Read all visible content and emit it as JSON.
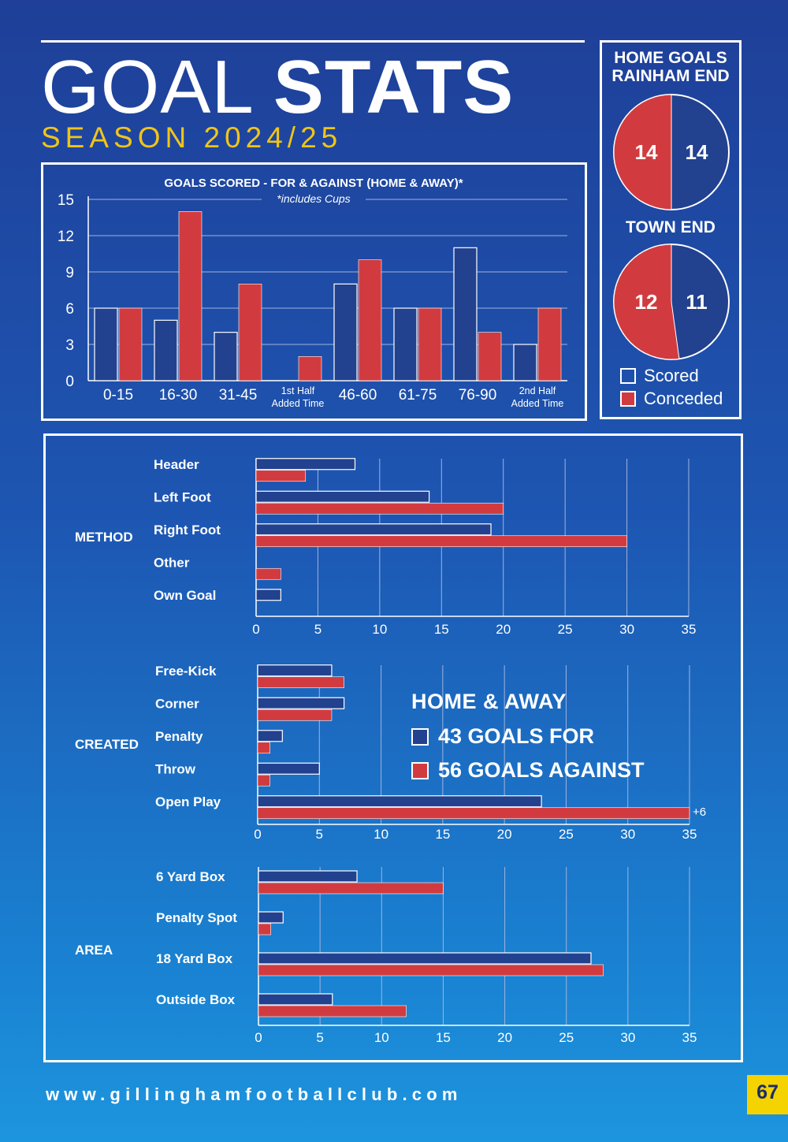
{
  "title": {
    "light": "GOAL",
    "bold": "STATS"
  },
  "season": "SEASON 2024/25",
  "colors": {
    "scored": "#22418f",
    "conceded": "#d13b3f",
    "season_text": "#f0c419",
    "page_box": "#f5d300"
  },
  "legend": {
    "scored": "Scored",
    "conceded": "Conceded"
  },
  "home_away": {
    "heading": "HOME & AWAY",
    "for": "43 GOALS FOR",
    "against": "56 GOALS AGAINST"
  },
  "footer": {
    "url": "www.gillinghamfootballclub.com",
    "page": "67"
  },
  "chart_data": [
    {
      "id": "timing",
      "type": "bar",
      "title": "GOALS SCORED - FOR & AGAINST (HOME & AWAY)*",
      "subtitle": "*includes Cups",
      "categories": [
        "0-15",
        "16-30",
        "31-45",
        "1st Half\nAdded Time",
        "46-60",
        "61-75",
        "76-90",
        "2nd Half\nAdded Time"
      ],
      "series": [
        {
          "name": "Scored",
          "values": [
            6,
            5,
            4,
            0,
            8,
            6,
            11,
            3
          ]
        },
        {
          "name": "Conceded",
          "values": [
            6,
            14,
            8,
            2,
            10,
            6,
            4,
            6
          ]
        }
      ],
      "yticks": [
        0,
        3,
        6,
        9,
        12,
        15
      ],
      "ylim": [
        0,
        15
      ],
      "grid": true
    },
    {
      "id": "rainham",
      "type": "pie",
      "title": "HOME GOALS\nRAINHAM END",
      "labels": [
        "Conceded",
        "Scored"
      ],
      "values": [
        14,
        14
      ]
    },
    {
      "id": "town",
      "type": "pie",
      "title": "TOWN END",
      "labels": [
        "Conceded",
        "Scored"
      ],
      "values": [
        12,
        11
      ]
    },
    {
      "id": "method",
      "type": "bar",
      "orientation": "horizontal",
      "group_label": "METHOD",
      "categories": [
        "Header",
        "Left Foot",
        "Right Foot",
        "Other",
        "Own Goal"
      ],
      "series": [
        {
          "name": "Scored",
          "values": [
            8,
            14,
            19,
            0,
            2
          ]
        },
        {
          "name": "Conceded",
          "values": [
            4,
            20,
            30,
            2,
            0
          ]
        }
      ],
      "xticks": [
        0,
        5,
        10,
        15,
        20,
        25,
        30,
        35
      ],
      "xlim": [
        0,
        35
      ],
      "grid": true
    },
    {
      "id": "created",
      "type": "bar",
      "orientation": "horizontal",
      "group_label": "CREATED",
      "categories": [
        "Free-Kick",
        "Corner",
        "Penalty",
        "Throw",
        "Open Play"
      ],
      "series": [
        {
          "name": "Scored",
          "values": [
            6,
            7,
            2,
            5,
            23
          ]
        },
        {
          "name": "Conceded",
          "values": [
            7,
            6,
            1,
            1,
            35
          ]
        }
      ],
      "annotations": [
        {
          "category": "Open Play",
          "series": "Conceded",
          "text": "+6"
        }
      ],
      "xticks": [
        0,
        5,
        10,
        15,
        20,
        25,
        30,
        35
      ],
      "xlim": [
        0,
        35
      ],
      "grid": true
    },
    {
      "id": "area",
      "type": "bar",
      "orientation": "horizontal",
      "group_label": "AREA",
      "categories": [
        "6 Yard Box",
        "Penalty Spot",
        "18 Yard Box",
        "Outside Box"
      ],
      "series": [
        {
          "name": "Scored",
          "values": [
            8,
            2,
            27,
            6
          ]
        },
        {
          "name": "Conceded",
          "values": [
            15,
            1,
            28,
            12
          ]
        }
      ],
      "xticks": [
        0,
        5,
        10,
        15,
        20,
        25,
        30,
        35
      ],
      "xlim": [
        0,
        35
      ],
      "grid": true
    }
  ]
}
